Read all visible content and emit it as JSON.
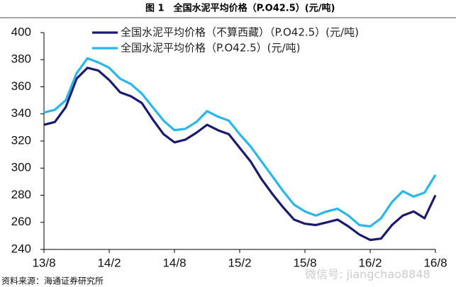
{
  "chart_data": {
    "type": "line",
    "title": "图 1　全国水泥平均价格（P.O42.5）(元/吨)",
    "categories": [
      "13/8",
      null,
      null,
      null,
      null,
      null,
      "14/2",
      null,
      null,
      null,
      null,
      null,
      "14/8",
      null,
      null,
      null,
      null,
      null,
      "15/2",
      null,
      null,
      null,
      null,
      null,
      "15/8",
      null,
      null,
      null,
      null,
      null,
      "16/2",
      null,
      null,
      null,
      null,
      null,
      "16/8"
    ],
    "series": [
      {
        "name": "全国水泥平均价格（不算西藏）（P.O42.5）(元/吨)",
        "color": "#1a1a6e",
        "values": [
          332,
          334,
          345,
          366,
          374,
          372,
          365,
          356,
          353,
          348,
          336,
          325,
          319,
          321,
          326,
          332,
          328,
          325,
          315,
          305,
          292,
          281,
          271,
          262,
          259,
          258,
          260,
          262,
          257,
          251,
          247,
          248,
          258,
          265,
          268,
          263,
          280
        ]
      },
      {
        "name": "全国水泥平均价格（P.O42.5）(元/吨)",
        "color": "#29b6e8",
        "values": [
          341,
          343,
          350,
          370,
          381,
          378,
          374,
          366,
          362,
          355,
          345,
          335,
          328,
          329,
          334,
          342,
          338,
          335,
          325,
          316,
          305,
          294,
          283,
          273,
          268,
          265,
          268,
          270,
          265,
          258,
          257,
          263,
          275,
          283,
          279,
          282,
          295
        ]
      }
    ],
    "ylim": [
      240,
      400
    ],
    "yticks": [
      240,
      260,
      280,
      300,
      320,
      340,
      360,
      380,
      400
    ],
    "source": "资料来源：海通证券研究所",
    "watermark": "微信号: jiangchao8848"
  }
}
